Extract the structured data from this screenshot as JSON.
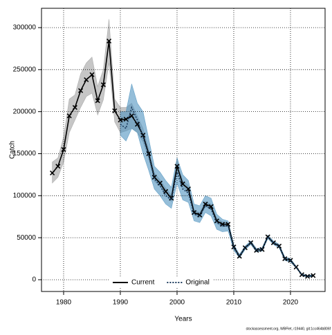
{
  "chart_data": {
    "type": "line",
    "x_label": "Years",
    "y_label": "Catch",
    "footer": "stockassessment.org, WBFlet, r19440, git:1cc464b806f",
    "xlim": [
      1976.1,
      2026.1
    ],
    "ylim": [
      -14000,
      323000
    ],
    "xticks": [
      1980,
      1990,
      2000,
      2010,
      2020
    ],
    "yticks": [
      0,
      50000,
      100000,
      150000,
      200000,
      250000,
      300000
    ],
    "grid": true,
    "legend": "bottom",
    "series": [
      {
        "name": "Current",
        "color": "#000000",
        "band_color": "#a0a0a0",
        "dash": false,
        "markers": true,
        "x": [
          1978,
          1979,
          1980,
          1981,
          1982,
          1983,
          1984,
          1985,
          1986,
          1987,
          1988,
          1989,
          1990,
          1991,
          1992,
          1993,
          1994,
          1995,
          1996,
          1997,
          1998,
          1999,
          2000,
          2001,
          2002,
          2003,
          2004,
          2005,
          2006,
          2007,
          2008,
          2009,
          2010,
          2011,
          2012,
          2013,
          2014,
          2015,
          2016,
          2017,
          2018,
          2019,
          2020,
          2021,
          2022,
          2023,
          2024
        ],
        "values": [
          127000,
          135000,
          155000,
          195000,
          205000,
          225000,
          238000,
          244000,
          213000,
          232000,
          284000,
          201000,
          190000,
          191000,
          195000,
          185000,
          172000,
          150000,
          122000,
          115000,
          105000,
          97000,
          135000,
          114000,
          108000,
          80000,
          77000,
          90000,
          87000,
          70000,
          66000,
          66000,
          39000,
          28000,
          38000,
          44000,
          35000,
          36000,
          51000,
          44000,
          40000,
          25000,
          23000,
          15000,
          6000,
          4000,
          5000
        ],
        "upper": [
          140000,
          145000,
          170000,
          215000,
          220000,
          245000,
          258000,
          265000,
          230000,
          250000,
          310000,
          215000,
          205000,
          205000,
          210000,
          195000,
          180000,
          155000,
          127000,
          119000,
          109000,
          101000,
          140000,
          118000,
          112000,
          83000,
          80000,
          93000,
          90000,
          73000,
          69000,
          68000,
          41000,
          30000,
          40000,
          46000,
          37000,
          38000,
          53000,
          46000,
          42000,
          27000,
          25000,
          16000,
          7000,
          5000,
          6000
        ],
        "lower": [
          115000,
          122000,
          140000,
          175000,
          190000,
          205000,
          218000,
          222000,
          196000,
          214000,
          258000,
          188000,
          175000,
          177000,
          180000,
          175000,
          164000,
          145000,
          117000,
          111000,
          101000,
          93000,
          130000,
          110000,
          104000,
          77000,
          74000,
          87000,
          84000,
          67000,
          63000,
          64000,
          37000,
          26000,
          36000,
          42000,
          33000,
          34000,
          49000,
          42000,
          38000,
          23000,
          21000,
          14000,
          5000,
          3000,
          4000
        ]
      },
      {
        "name": "Original",
        "color": "#1a3a5c",
        "band_color": "#4f93bf",
        "dash": true,
        "markers": false,
        "x": [
          1990,
          1991,
          1992,
          1993,
          1994,
          1995,
          1996,
          1997,
          1998,
          1999,
          2000,
          2001,
          2002,
          2003,
          2004,
          2005,
          2006,
          2007,
          2008,
          2009,
          2010,
          2011,
          2012,
          2013,
          2014,
          2015,
          2016,
          2017,
          2018,
          2019,
          2020,
          2021,
          2022,
          2023,
          2024
        ],
        "values": [
          185000,
          180000,
          205000,
          190000,
          170000,
          148000,
          120000,
          112000,
          100000,
          95000,
          128000,
          108000,
          103000,
          78000,
          76000,
          88000,
          84000,
          68000,
          64000,
          64000,
          38000,
          28000,
          38000,
          44000,
          35000,
          36000,
          51000,
          44000,
          40000,
          25000,
          23000,
          15000,
          6000,
          4000,
          5000
        ],
        "upper": [
          200000,
          200000,
          233000,
          210000,
          200000,
          168000,
          135000,
          128000,
          118000,
          110000,
          145000,
          125000,
          118000,
          90000,
          88000,
          100000,
          97000,
          78000,
          72000,
          70000,
          42000,
          30000,
          40000,
          46000,
          37000,
          38000,
          53000,
          46000,
          42000,
          27000,
          25000,
          16000,
          7000,
          5000,
          6000
        ],
        "lower": [
          172000,
          165000,
          180000,
          175000,
          150000,
          130000,
          108000,
          100000,
          90000,
          85000,
          115000,
          95000,
          92000,
          70000,
          68000,
          80000,
          76000,
          60000,
          57000,
          58000,
          35000,
          26000,
          36000,
          42000,
          33000,
          34000,
          49000,
          42000,
          38000,
          23000,
          21000,
          14000,
          5000,
          3000,
          4000
        ]
      }
    ]
  }
}
